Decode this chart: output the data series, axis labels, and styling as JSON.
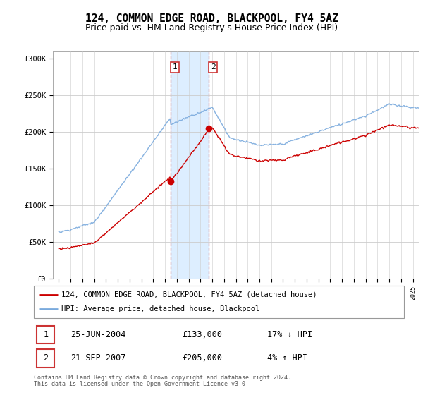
{
  "title": "124, COMMON EDGE ROAD, BLACKPOOL, FY4 5AZ",
  "subtitle": "Price paid vs. HM Land Registry's House Price Index (HPI)",
  "legend_line1": "124, COMMON EDGE ROAD, BLACKPOOL, FY4 5AZ (detached house)",
  "legend_line2": "HPI: Average price, detached house, Blackpool",
  "footer1": "Contains HM Land Registry data © Crown copyright and database right 2024.",
  "footer2": "This data is licensed under the Open Government Licence v3.0.",
  "sale1_date": "25-JUN-2004",
  "sale1_price": "£133,000",
  "sale1_hpi": "17% ↓ HPI",
  "sale2_date": "21-SEP-2007",
  "sale2_price": "£205,000",
  "sale2_hpi": "4% ↑ HPI",
  "sale1_year": 2004.49,
  "sale1_value": 133000,
  "sale2_year": 2007.72,
  "sale2_value": 205000,
  "shade_start": 2004.49,
  "shade_end": 2007.72,
  "ylim": [
    0,
    310000
  ],
  "xlim": [
    1994.5,
    2025.5
  ],
  "red_color": "#cc0000",
  "blue_color": "#7aaadd",
  "shade_color": "#ddeeff",
  "background_color": "#ffffff",
  "grid_color": "#cccccc",
  "title_fontsize": 10.5,
  "subtitle_fontsize": 9
}
